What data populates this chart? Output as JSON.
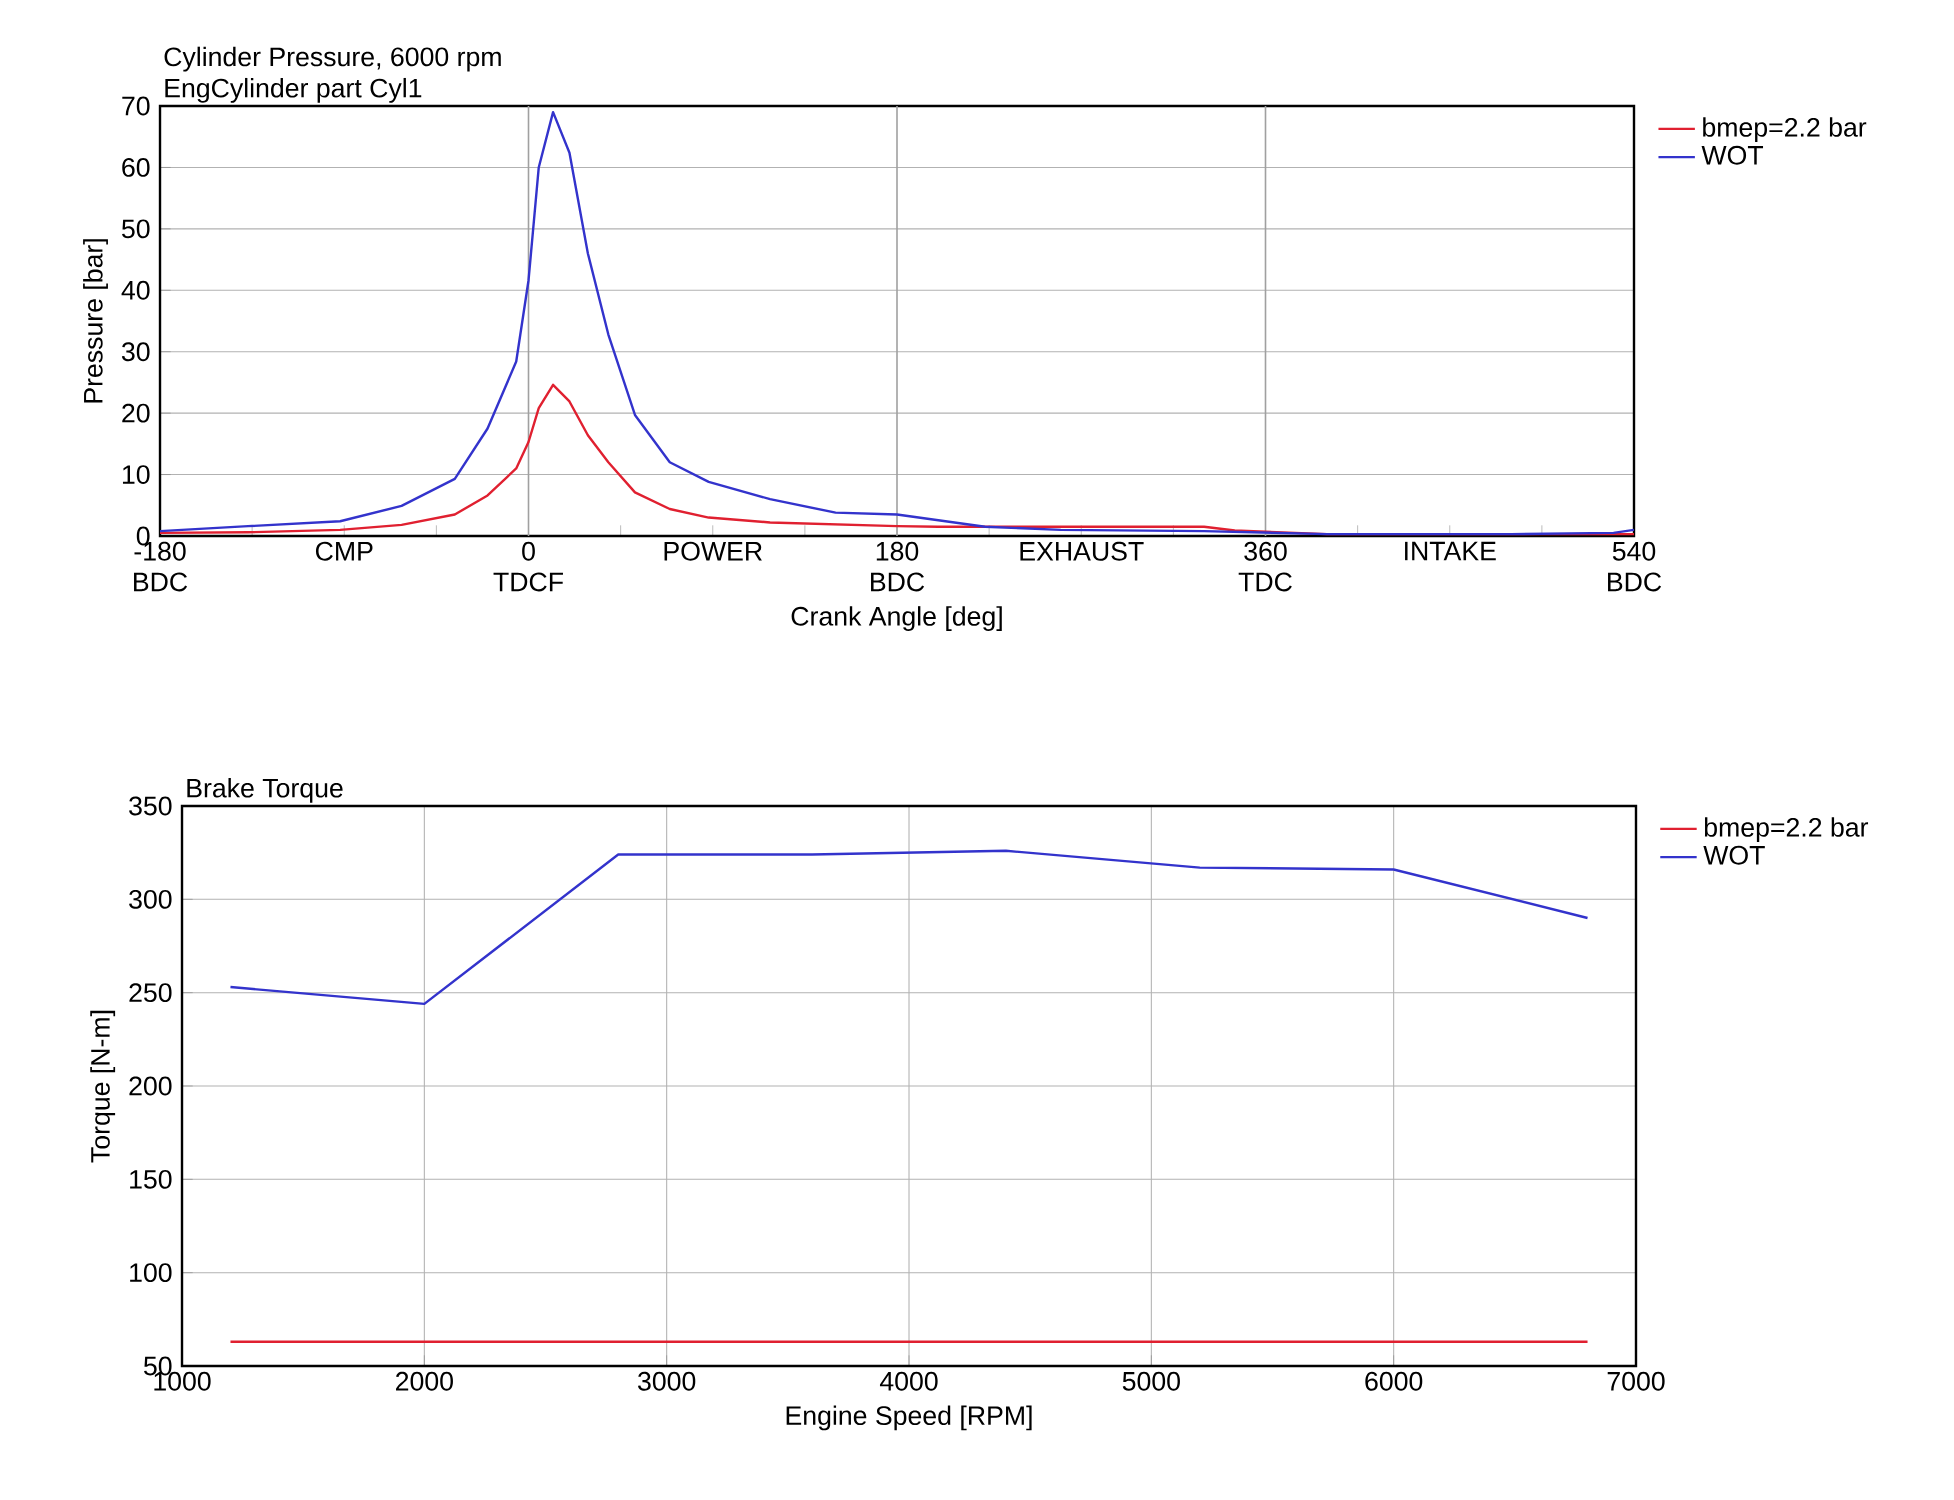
{
  "chart_data": [
    {
      "type": "line",
      "title": "Cylinder Pressure, 6000 rpm",
      "subtitle": "EngCylinder part Cyl1",
      "xlabel": "Crank Angle [deg]",
      "ylabel": "Pressure [bar]",
      "xlim": [
        -180,
        540
      ],
      "ylim": [
        0,
        70
      ],
      "xticks": [
        {
          "value": -180,
          "label": "-180 BDC"
        },
        {
          "value": -135,
          "label": null
        },
        {
          "value": -90,
          "label": "CMP"
        },
        {
          "value": -45,
          "label": null
        },
        {
          "value": 0,
          "label": "0 TDCF"
        },
        {
          "value": 45,
          "label": null
        },
        {
          "value": 90,
          "label": "POWER"
        },
        {
          "value": 135,
          "label": null
        },
        {
          "value": 180,
          "label": "180 BDC"
        },
        {
          "value": 225,
          "label": null
        },
        {
          "value": 270,
          "label": "EXHAUST"
        },
        {
          "value": 315,
          "label": null
        },
        {
          "value": 360,
          "label": "360 TDC"
        },
        {
          "value": 405,
          "label": null
        },
        {
          "value": 450,
          "label": "INTAKE"
        },
        {
          "value": 495,
          "label": null
        },
        {
          "value": 540,
          "label": "540 BDC"
        }
      ],
      "yticks": [
        0,
        10,
        20,
        30,
        40,
        50,
        60,
        70
      ],
      "ref_lines": [
        {
          "axis": "x",
          "value": 0,
          "color": "#a0a0a0"
        },
        {
          "axis": "x",
          "value": 180,
          "color": "#a0a0a0"
        },
        {
          "axis": "x",
          "value": 360,
          "color": "#a0a0a0"
        }
      ],
      "grid": "y",
      "legend": "right",
      "series": [
        {
          "name": "bmep=2.2 bar",
          "color": "#e02030",
          "x": [
            -180,
            -137,
            -92,
            -62,
            -36,
            -20,
            -6,
            0,
            5,
            12,
            20,
            29,
            39,
            52,
            69,
            88,
            118,
            180,
            200,
            330,
            345,
            390,
            540
          ],
          "values": [
            0.5,
            0.6,
            1.0,
            1.8,
            3.5,
            6.6,
            11,
            15.3,
            20.8,
            24.6,
            21.9,
            16.4,
            12,
            7.1,
            4.4,
            3,
            2.2,
            1.6,
            1.5,
            1.5,
            0.9,
            0.3,
            0.3
          ]
        },
        {
          "name": "WOT",
          "color": "#3333cc",
          "x": [
            -180,
            -137,
            -92,
            -62,
            -36,
            -20,
            -6,
            0,
            5,
            12,
            20,
            29,
            39,
            52,
            69,
            88,
            118,
            150,
            180,
            223,
            260,
            330,
            390,
            480,
            530,
            540
          ],
          "values": [
            0.8,
            1.6,
            2.4,
            4.9,
            9.3,
            17.5,
            28.4,
            41.6,
            60,
            69,
            62.4,
            46,
            32.8,
            19.7,
            12,
            8.8,
            6,
            3.8,
            3.5,
            1.5,
            1.0,
            0.8,
            0.3,
            0.3,
            0.5,
            1.0
          ]
        }
      ]
    },
    {
      "type": "line",
      "title": "Brake Torque",
      "xlabel": "Engine Speed [RPM]",
      "ylabel": "Torque [N-m]",
      "xlim": [
        1000,
        7000
      ],
      "ylim": [
        50,
        350
      ],
      "xticks": [
        1000,
        2000,
        3000,
        4000,
        5000,
        6000,
        7000
      ],
      "yticks": [
        50,
        100,
        150,
        200,
        250,
        300,
        350
      ],
      "grid": true,
      "legend": "right",
      "series": [
        {
          "name": "bmep=2.2 bar",
          "color": "#e02030",
          "x": [
            1200,
            2000,
            2800,
            3600,
            4400,
            5200,
            6000,
            6800
          ],
          "values": [
            63,
            63,
            63,
            63,
            63,
            63,
            63,
            63
          ]
        },
        {
          "name": "WOT",
          "color": "#3333cc",
          "x": [
            1200,
            2000,
            2800,
            3600,
            4400,
            5200,
            6000,
            6800
          ],
          "values": [
            253,
            244,
            324,
            324,
            326,
            317,
            316,
            290
          ]
        }
      ]
    }
  ]
}
